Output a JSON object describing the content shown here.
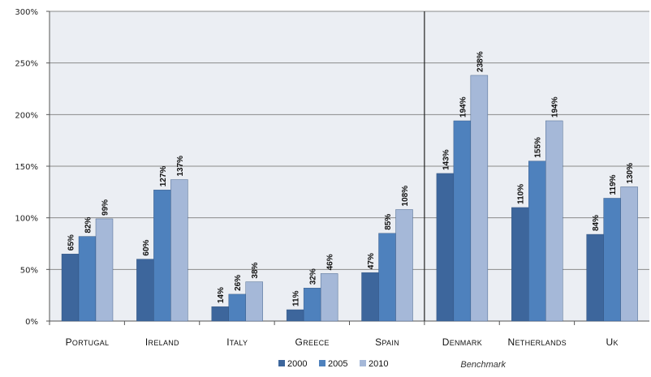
{
  "chart_data": {
    "type": "bar",
    "categories": [
      "Portugal",
      "Ireland",
      "Italy",
      "Greece",
      "Spain",
      "Denmark",
      "Netherlands",
      "UK"
    ],
    "series": [
      {
        "name": "2000",
        "values": [
          65,
          60,
          14,
          11,
          47,
          143,
          110,
          84
        ],
        "labels": [
          "65%",
          "60%",
          "14%",
          "11%",
          "47%",
          "143%",
          "110%",
          "84%"
        ],
        "color": "#3d669c"
      },
      {
        "name": "2005",
        "values": [
          82,
          127,
          26,
          32,
          85,
          194,
          155,
          119
        ],
        "labels": [
          "82%",
          "127%",
          "26%",
          "32%",
          "85%",
          "194%",
          "155%",
          "119%"
        ],
        "color": "#4e81bd"
      },
      {
        "name": "2010",
        "values": [
          99,
          137,
          38,
          46,
          108,
          238,
          194,
          130
        ],
        "labels": [
          "99%",
          "137%",
          "38%",
          "46%",
          "108%",
          "238%",
          "194%",
          "130%"
        ],
        "color": "#a5b8d8"
      }
    ],
    "ylim": [
      0,
      300
    ],
    "yticks": [
      0,
      50,
      100,
      150,
      200,
      250,
      300
    ],
    "ytick_labels": [
      "0%",
      "50%",
      "100%",
      "150%",
      "200%",
      "250%",
      "300%"
    ],
    "grid": true,
    "plot_background": "#ebeef3",
    "annotations": [
      {
        "text": "Benchmark",
        "divider_after_category": "Spain"
      }
    ],
    "legend_position": "bottom",
    "title": "",
    "xlabel": "",
    "ylabel": ""
  }
}
